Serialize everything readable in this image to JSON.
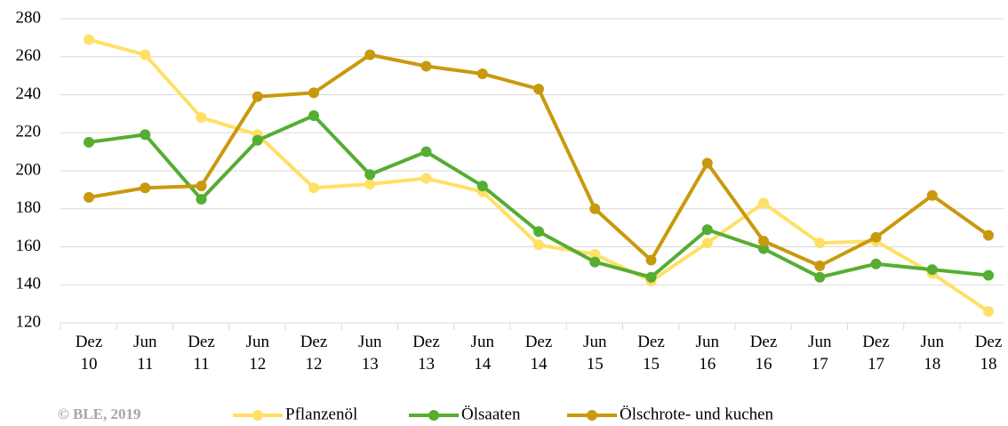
{
  "chart_data": {
    "type": "line",
    "categories": [
      "Dez 10",
      "Jun 11",
      "Dez 11",
      "Jun 12",
      "Dez 12",
      "Jun 13",
      "Dez 13",
      "Jun 14",
      "Dez 14",
      "Jun 15",
      "Dez 15",
      "Jun 16",
      "Dez 16",
      "Jun 17",
      "Dez 17",
      "Jun 18",
      "Dez 18"
    ],
    "series": [
      {
        "name": "Pflanzenöl",
        "color": "#ffe066",
        "values": [
          269,
          261,
          228,
          219,
          191,
          193,
          196,
          189,
          161,
          156,
          142,
          162,
          183,
          162,
          163,
          146,
          126
        ]
      },
      {
        "name": "Ölsaaten",
        "color": "#55ad32",
        "values": [
          215,
          219,
          185,
          216,
          229,
          198,
          210,
          192,
          168,
          152,
          144,
          169,
          159,
          144,
          151,
          148,
          145
        ]
      },
      {
        "name": "Ölschrote- und kuchen",
        "color": "#c9990d",
        "values": [
          186,
          191,
          192,
          239,
          241,
          261,
          255,
          251,
          243,
          180,
          153,
          204,
          163,
          150,
          165,
          187,
          166
        ]
      }
    ],
    "ylim": [
      120,
      280
    ],
    "yticks": [
      120,
      140,
      160,
      180,
      200,
      220,
      240,
      260,
      280
    ],
    "grid": true,
    "source": "© BLE, 2019",
    "legend": "bottom"
  }
}
